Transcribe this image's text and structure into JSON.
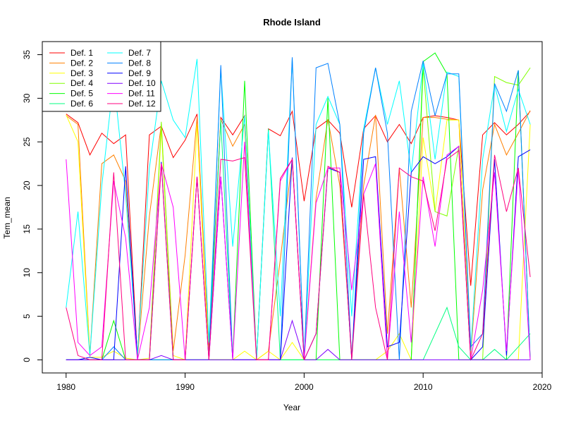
{
  "chart_data": {
    "type": "line",
    "title": "Rhode Island",
    "xlabel": "Year",
    "ylabel": "Tem_mean",
    "xlim": [
      1978,
      2020
    ],
    "ylim": [
      -1.5,
      36.5
    ],
    "xticks": [
      1980,
      1990,
      2000,
      2010,
      2020
    ],
    "yticks": [
      0,
      5,
      10,
      15,
      20,
      25,
      30,
      35
    ],
    "grid": false,
    "legend_position": "top-left",
    "x": [
      1980,
      1981,
      1982,
      1983,
      1984,
      1985,
      1986,
      1987,
      1988,
      1989,
      1990,
      1991,
      1992,
      1993,
      1994,
      1995,
      1996,
      1997,
      1998,
      1999,
      2000,
      2001,
      2002,
      2003,
      2004,
      2005,
      2006,
      2007,
      2008,
      2009,
      2010,
      2011,
      2012,
      2013,
      2014,
      2015,
      2016,
      2017,
      2018,
      2019
    ],
    "series": [
      {
        "name": "Def. 1",
        "color": "#FF0000",
        "values": [
          28.2,
          27.2,
          23.5,
          26.0,
          24.8,
          25.8,
          0.2,
          25.8,
          26.8,
          23.2,
          25.2,
          28.2,
          1.0,
          27.8,
          25.8,
          28.0,
          0,
          26.5,
          25.7,
          28.5,
          18.2,
          26.5,
          27.5,
          26.0,
          17.5,
          26.5,
          28.0,
          25.0,
          27.0,
          24.8,
          27.8,
          28.0,
          27.8,
          27.5,
          8.5,
          25.8,
          27.2,
          25.8,
          27.0,
          28.5
        ]
      },
      {
        "name": "Def. 2",
        "color": "#FF8000",
        "values": [
          28.0,
          27.0,
          0.5,
          22.5,
          23.5,
          20.5,
          0.2,
          16.5,
          27.0,
          1.0,
          12.0,
          27.8,
          0.5,
          27.6,
          24.5,
          27.0,
          0,
          1.0,
          11.5,
          23.0,
          0.2,
          18.5,
          27.6,
          20.0,
          0.5,
          20.0,
          28.1,
          3.0,
          22.0,
          6.0,
          27.8,
          27.8,
          27.6,
          27.5,
          0.5,
          19.5,
          27.0,
          23.5,
          26.0,
          28.6
        ]
      },
      {
        "name": "Def. 3",
        "color": "#FFFF00",
        "values": [
          28.1,
          25.0,
          0.3,
          0.3,
          1.0,
          0.2,
          0,
          0.2,
          26.5,
          0.5,
          0,
          27.0,
          0,
          0,
          0,
          1.0,
          0,
          1.0,
          0,
          2.0,
          0,
          0,
          0,
          0,
          0,
          0,
          0,
          1.0,
          3.0,
          0,
          25.5,
          17.0,
          27.5,
          27.5,
          0,
          0,
          0,
          0,
          0,
          27.0
        ]
      },
      {
        "name": "Def. 4",
        "color": "#80FF00",
        "values": [
          0,
          0,
          0,
          0,
          0,
          0,
          0,
          0,
          27.3,
          0,
          0,
          0,
          0,
          0,
          0,
          0,
          0,
          0,
          0,
          0,
          0,
          0,
          0,
          0,
          0,
          0,
          0,
          0,
          0,
          0,
          33.5,
          17.0,
          16.5,
          24.5,
          0,
          0,
          32.5,
          31.8,
          31.5,
          33.5
        ]
      },
      {
        "name": "Def. 5",
        "color": "#00FF00",
        "values": [
          0,
          0,
          0,
          0,
          4.5,
          0,
          0,
          0,
          0,
          0,
          0,
          0,
          0,
          0,
          0,
          32.0,
          0,
          0,
          0,
          0,
          0,
          0,
          30.0,
          0,
          0,
          0,
          0,
          0,
          0,
          0,
          34.2,
          35.2,
          32.8,
          0,
          0,
          0,
          0,
          0,
          33.2,
          0
        ]
      },
      {
        "name": "Def. 6",
        "color": "#00FF80",
        "values": [
          0,
          0,
          0,
          0,
          0,
          0,
          0,
          0,
          0,
          0,
          0,
          0,
          0,
          27.5,
          0,
          0,
          0,
          26.5,
          0,
          0,
          0,
          0,
          0,
          0,
          0,
          0,
          0,
          0,
          0,
          0,
          0,
          3.0,
          6.0,
          1.5,
          0,
          0,
          1.2,
          0,
          1.5,
          3.0
        ]
      },
      {
        "name": "Def. 7",
        "color": "#00FFFF",
        "values": [
          6.0,
          17.0,
          0.5,
          20.0,
          32.2,
          19.0,
          0.5,
          22.0,
          32.0,
          27.5,
          25.5,
          34.5,
          2.0,
          33.2,
          13.0,
          28.0,
          0,
          26.2,
          5.0,
          34.5,
          0,
          27.0,
          30.2,
          27.0,
          5.0,
          26.5,
          33.5,
          27.0,
          32.0,
          21.5,
          34.0,
          23.0,
          33.0,
          32.5,
          1.0,
          23.0,
          31.5,
          26.2,
          31.0,
          27.0
        ]
      },
      {
        "name": "Def. 8",
        "color": "#0080FF",
        "values": [
          0,
          0,
          0,
          0,
          1.5,
          0,
          0,
          0,
          0,
          0,
          0,
          0,
          0,
          33.8,
          0,
          0,
          0,
          0,
          0,
          34.7,
          0,
          33.5,
          34.0,
          27.0,
          0,
          26.0,
          33.5,
          26.0,
          0,
          28.5,
          34.3,
          28.0,
          32.8,
          32.8,
          1.5,
          3.0,
          31.7,
          28.5,
          33.2,
          0
        ]
      },
      {
        "name": "Def. 9",
        "color": "#0000FF",
        "values": [
          0,
          0,
          0.3,
          0,
          0,
          22.2,
          0,
          0,
          22.7,
          0,
          0,
          21.0,
          0,
          21.0,
          0,
          0,
          0,
          0,
          0,
          23.2,
          0,
          3.0,
          22.0,
          21.5,
          0,
          23.0,
          23.3,
          1.5,
          2.0,
          21.5,
          23.3,
          22.5,
          23.3,
          24.5,
          0,
          1.5,
          23.0,
          0.5,
          23.3,
          24.1
        ]
      },
      {
        "name": "Def. 10",
        "color": "#8000FF",
        "values": [
          0,
          0,
          0,
          0,
          0,
          0,
          0,
          0,
          0.5,
          0,
          0,
          0,
          0,
          0,
          0,
          0,
          0,
          0,
          0,
          4.5,
          0,
          0,
          1.2,
          0,
          0,
          0,
          0,
          0,
          0,
          0,
          0,
          0,
          0,
          0,
          0,
          0,
          0,
          0,
          0,
          0
        ]
      },
      {
        "name": "Def. 11",
        "color": "#FF00FF",
        "values": [
          23.0,
          2.0,
          0.5,
          1.5,
          20.5,
          14.0,
          0,
          6.0,
          22.5,
          17.5,
          0,
          21.0,
          0,
          21.0,
          0,
          25.0,
          0,
          0,
          20.5,
          23.0,
          0,
          18.0,
          22.0,
          22.0,
          8.0,
          19.0,
          22.5,
          0,
          17.0,
          2.0,
          21.0,
          13.0,
          23.5,
          24.5,
          0,
          8.0,
          21.5,
          1.0,
          22.0,
          0
        ]
      },
      {
        "name": "Def. 12",
        "color": "#FF0080",
        "values": [
          6.0,
          0.5,
          0,
          0,
          21.5,
          0,
          0,
          0,
          22.5,
          0,
          0,
          21.0,
          0,
          23.0,
          22.8,
          23.2,
          0,
          0,
          20.8,
          23.0,
          0,
          3.0,
          22.2,
          21.5,
          0,
          19.0,
          6.0,
          0,
          22.0,
          21.0,
          20.5,
          14.8,
          23.0,
          24.0,
          0,
          3.0,
          23.5,
          17.0,
          22.0,
          9.5
        ]
      }
    ]
  }
}
